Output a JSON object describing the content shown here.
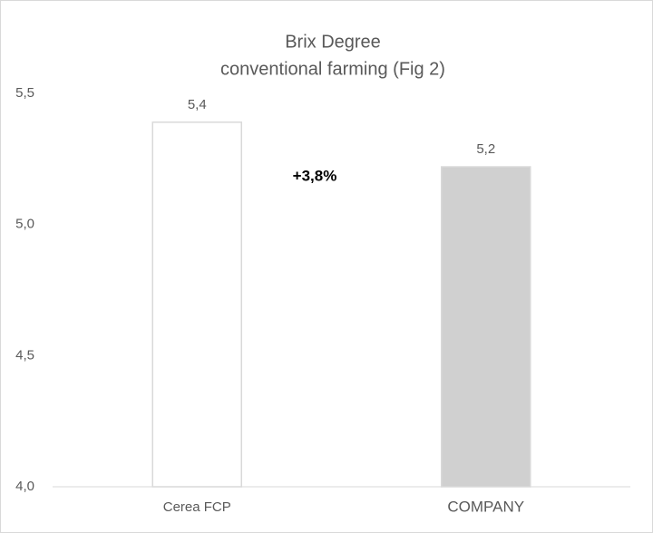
{
  "chart_data": {
    "type": "bar",
    "title": "Brix Degree",
    "subtitle": "conventional farming (Fig 2)",
    "categories": [
      "Cerea FCP",
      "COMPANY"
    ],
    "values": [
      5.39,
      5.22
    ],
    "value_labels": [
      "5,4",
      "5,2"
    ],
    "colors": [
      "#ffffff",
      "#d0d0d0"
    ],
    "annotation": "+3,8%",
    "ylim": [
      4.0,
      5.5
    ],
    "yticks": [
      {
        "value": 4.0,
        "label": "4,0"
      },
      {
        "value": 4.5,
        "label": "4,5"
      },
      {
        "value": 5.0,
        "label": "5,0"
      },
      {
        "value": 5.5,
        "label": "5,5"
      }
    ],
    "grid": false
  }
}
